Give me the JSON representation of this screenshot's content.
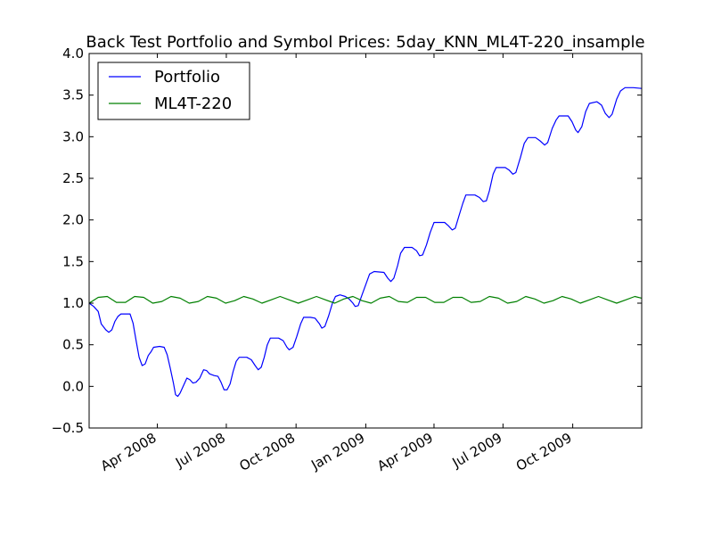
{
  "chart_data": {
    "type": "line",
    "title": "Back Test Portfolio and Symbol Prices: 5day_KNN_ML4T-220_insample",
    "xlabel": "",
    "ylabel": "",
    "xlim": [
      "2008-01-02",
      "2009-12-31"
    ],
    "ylim": [
      -0.5,
      4.0
    ],
    "y_ticks": [
      -0.5,
      0.0,
      0.5,
      1.0,
      1.5,
      2.0,
      2.5,
      3.0,
      3.5,
      4.0
    ],
    "y_tick_labels": [
      "−0.5",
      "0.0",
      "0.5",
      "1.0",
      "1.5",
      "2.0",
      "2.5",
      "3.0",
      "3.5",
      "4.0"
    ],
    "x_ticks": [
      "2008-04-01",
      "2008-07-01",
      "2008-10-01",
      "2009-01-01",
      "2009-04-01",
      "2009-07-01",
      "2009-10-01"
    ],
    "x_tick_labels": [
      "Apr 2008",
      "Jul 2008",
      "Oct 2008",
      "Jan 2009",
      "Apr 2009",
      "Jul 2009",
      "Oct 2009"
    ],
    "grid": false,
    "legend_position": "top-left",
    "series": [
      {
        "name": "Portfolio",
        "color": "#0000ff",
        "points": [
          [
            "2008-01-02",
            1.0
          ],
          [
            "2008-01-08",
            0.96
          ],
          [
            "2008-01-14",
            0.9
          ],
          [
            "2008-01-18",
            0.75
          ],
          [
            "2008-01-24",
            0.68
          ],
          [
            "2008-01-28",
            0.65
          ],
          [
            "2008-02-01",
            0.68
          ],
          [
            "2008-02-05",
            0.78
          ],
          [
            "2008-02-09",
            0.84
          ],
          [
            "2008-02-13",
            0.87
          ],
          [
            "2008-02-18",
            0.87
          ],
          [
            "2008-02-25",
            0.87
          ],
          [
            "2008-02-29",
            0.76
          ],
          [
            "2008-03-04",
            0.55
          ],
          [
            "2008-03-08",
            0.35
          ],
          [
            "2008-03-12",
            0.25
          ],
          [
            "2008-03-16",
            0.27
          ],
          [
            "2008-03-20",
            0.37
          ],
          [
            "2008-03-24",
            0.42
          ],
          [
            "2008-03-27",
            0.47
          ],
          [
            "2008-04-04",
            0.48
          ],
          [
            "2008-04-10",
            0.47
          ],
          [
            "2008-04-14",
            0.38
          ],
          [
            "2008-04-18",
            0.22
          ],
          [
            "2008-04-22",
            0.05
          ],
          [
            "2008-04-25",
            -0.1
          ],
          [
            "2008-04-28",
            -0.12
          ],
          [
            "2008-05-01",
            -0.08
          ],
          [
            "2008-05-06",
            0.02
          ],
          [
            "2008-05-10",
            0.1
          ],
          [
            "2008-05-14",
            0.08
          ],
          [
            "2008-05-18",
            0.04
          ],
          [
            "2008-05-22",
            0.05
          ],
          [
            "2008-05-27",
            0.1
          ],
          [
            "2008-06-01",
            0.2
          ],
          [
            "2008-06-05",
            0.19
          ],
          [
            "2008-06-09",
            0.15
          ],
          [
            "2008-06-15",
            0.13
          ],
          [
            "2008-06-20",
            0.12
          ],
          [
            "2008-06-24",
            0.05
          ],
          [
            "2008-06-28",
            -0.04
          ],
          [
            "2008-07-02",
            -0.04
          ],
          [
            "2008-07-06",
            0.03
          ],
          [
            "2008-07-10",
            0.18
          ],
          [
            "2008-07-14",
            0.3
          ],
          [
            "2008-07-18",
            0.35
          ],
          [
            "2008-07-28",
            0.35
          ],
          [
            "2008-08-03",
            0.32
          ],
          [
            "2008-08-08",
            0.25
          ],
          [
            "2008-08-12",
            0.2
          ],
          [
            "2008-08-16",
            0.23
          ],
          [
            "2008-08-20",
            0.35
          ],
          [
            "2008-08-24",
            0.5
          ],
          [
            "2008-08-28",
            0.58
          ],
          [
            "2008-09-08",
            0.58
          ],
          [
            "2008-09-14",
            0.55
          ],
          [
            "2008-09-19",
            0.47
          ],
          [
            "2008-09-22",
            0.44
          ],
          [
            "2008-09-27",
            0.47
          ],
          [
            "2008-10-02",
            0.6
          ],
          [
            "2008-10-07",
            0.75
          ],
          [
            "2008-10-11",
            0.83
          ],
          [
            "2008-10-20",
            0.83
          ],
          [
            "2008-10-26",
            0.82
          ],
          [
            "2008-11-01",
            0.75
          ],
          [
            "2008-11-04",
            0.7
          ],
          [
            "2008-11-08",
            0.72
          ],
          [
            "2008-11-13",
            0.85
          ],
          [
            "2008-11-18",
            1.0
          ],
          [
            "2008-11-22",
            1.08
          ],
          [
            "2008-11-28",
            1.1
          ],
          [
            "2008-12-05",
            1.08
          ],
          [
            "2008-12-10",
            1.05
          ],
          [
            "2008-12-15",
            1.0
          ],
          [
            "2008-12-18",
            0.96
          ],
          [
            "2008-12-22",
            0.97
          ],
          [
            "2008-12-27",
            1.1
          ],
          [
            "2009-01-02",
            1.25
          ],
          [
            "2009-01-06",
            1.35
          ],
          [
            "2009-01-12",
            1.38
          ],
          [
            "2009-01-25",
            1.37
          ],
          [
            "2009-01-30",
            1.3
          ],
          [
            "2009-02-03",
            1.26
          ],
          [
            "2009-02-07",
            1.3
          ],
          [
            "2009-02-12",
            1.45
          ],
          [
            "2009-02-16",
            1.6
          ],
          [
            "2009-02-21",
            1.67
          ],
          [
            "2009-03-03",
            1.67
          ],
          [
            "2009-03-09",
            1.63
          ],
          [
            "2009-03-13",
            1.57
          ],
          [
            "2009-03-17",
            1.58
          ],
          [
            "2009-03-22",
            1.7
          ],
          [
            "2009-03-27",
            1.85
          ],
          [
            "2009-04-01",
            1.97
          ],
          [
            "2009-04-15",
            1.97
          ],
          [
            "2009-04-20",
            1.93
          ],
          [
            "2009-04-25",
            1.88
          ],
          [
            "2009-04-29",
            1.9
          ],
          [
            "2009-05-04",
            2.05
          ],
          [
            "2009-05-09",
            2.2
          ],
          [
            "2009-05-13",
            2.3
          ],
          [
            "2009-05-25",
            2.3
          ],
          [
            "2009-05-31",
            2.27
          ],
          [
            "2009-06-05",
            2.22
          ],
          [
            "2009-06-09",
            2.23
          ],
          [
            "2009-06-13",
            2.35
          ],
          [
            "2009-06-18",
            2.55
          ],
          [
            "2009-06-22",
            2.63
          ],
          [
            "2009-07-04",
            2.63
          ],
          [
            "2009-07-09",
            2.6
          ],
          [
            "2009-07-14",
            2.55
          ],
          [
            "2009-07-18",
            2.57
          ],
          [
            "2009-07-24",
            2.75
          ],
          [
            "2009-07-29",
            2.92
          ],
          [
            "2009-08-03",
            2.99
          ],
          [
            "2009-08-13",
            2.99
          ],
          [
            "2009-08-19",
            2.95
          ],
          [
            "2009-08-25",
            2.9
          ],
          [
            "2009-08-29",
            2.93
          ],
          [
            "2009-09-04",
            3.1
          ],
          [
            "2009-09-09",
            3.2
          ],
          [
            "2009-09-13",
            3.25
          ],
          [
            "2009-09-25",
            3.25
          ],
          [
            "2009-09-30",
            3.18
          ],
          [
            "2009-10-05",
            3.08
          ],
          [
            "2009-10-08",
            3.05
          ],
          [
            "2009-10-13",
            3.12
          ],
          [
            "2009-10-18",
            3.3
          ],
          [
            "2009-10-23",
            3.4
          ],
          [
            "2009-11-02",
            3.42
          ],
          [
            "2009-11-08",
            3.38
          ],
          [
            "2009-11-13",
            3.28
          ],
          [
            "2009-11-18",
            3.23
          ],
          [
            "2009-11-22",
            3.27
          ],
          [
            "2009-11-28",
            3.45
          ],
          [
            "2009-12-03",
            3.55
          ],
          [
            "2009-12-09",
            3.59
          ],
          [
            "2009-12-20",
            3.59
          ],
          [
            "2009-12-31",
            3.58
          ]
        ]
      },
      {
        "name": "ML4T-220",
        "color": "#008000",
        "baseline": 1.0,
        "amplitude": 0.085,
        "period_days": 48,
        "points": [
          [
            "2008-01-02",
            1.0
          ],
          [
            "2008-01-14",
            1.07
          ],
          [
            "2008-01-26",
            1.08
          ],
          [
            "2008-02-07",
            1.01
          ],
          [
            "2008-02-19",
            1.01
          ],
          [
            "2008-03-02",
            1.08
          ],
          [
            "2008-03-14",
            1.07
          ],
          [
            "2008-03-26",
            1.0
          ],
          [
            "2008-04-07",
            1.02
          ],
          [
            "2008-04-19",
            1.08
          ],
          [
            "2008-05-01",
            1.06
          ],
          [
            "2008-05-13",
            1.0
          ],
          [
            "2008-05-25",
            1.02
          ],
          [
            "2008-06-06",
            1.08
          ],
          [
            "2008-06-18",
            1.06
          ],
          [
            "2008-06-30",
            1.0
          ],
          [
            "2008-07-12",
            1.03
          ],
          [
            "2008-07-24",
            1.08
          ],
          [
            "2008-08-05",
            1.05
          ],
          [
            "2008-08-17",
            1.0
          ],
          [
            "2008-08-29",
            1.04
          ],
          [
            "2008-09-10",
            1.08
          ],
          [
            "2008-09-22",
            1.04
          ],
          [
            "2008-10-04",
            1.0
          ],
          [
            "2008-10-16",
            1.04
          ],
          [
            "2008-10-28",
            1.08
          ],
          [
            "2008-11-09",
            1.04
          ],
          [
            "2008-11-21",
            1.0
          ],
          [
            "2008-12-03",
            1.05
          ],
          [
            "2008-12-15",
            1.08
          ],
          [
            "2008-12-27",
            1.03
          ],
          [
            "2009-01-08",
            1.0
          ],
          [
            "2009-01-20",
            1.06
          ],
          [
            "2009-02-01",
            1.08
          ],
          [
            "2009-02-13",
            1.02
          ],
          [
            "2009-02-25",
            1.01
          ],
          [
            "2009-03-09",
            1.07
          ],
          [
            "2009-03-21",
            1.07
          ],
          [
            "2009-04-02",
            1.01
          ],
          [
            "2009-04-14",
            1.01
          ],
          [
            "2009-04-26",
            1.07
          ],
          [
            "2009-05-08",
            1.07
          ],
          [
            "2009-05-20",
            1.01
          ],
          [
            "2009-06-01",
            1.02
          ],
          [
            "2009-06-13",
            1.08
          ],
          [
            "2009-06-25",
            1.06
          ],
          [
            "2009-07-07",
            1.0
          ],
          [
            "2009-07-19",
            1.02
          ],
          [
            "2009-07-31",
            1.08
          ],
          [
            "2009-08-12",
            1.05
          ],
          [
            "2009-08-24",
            1.0
          ],
          [
            "2009-09-05",
            1.03
          ],
          [
            "2009-09-17",
            1.08
          ],
          [
            "2009-09-29",
            1.05
          ],
          [
            "2009-10-11",
            1.0
          ],
          [
            "2009-10-23",
            1.04
          ],
          [
            "2009-11-04",
            1.08
          ],
          [
            "2009-11-16",
            1.04
          ],
          [
            "2009-11-28",
            1.0
          ],
          [
            "2009-12-10",
            1.04
          ],
          [
            "2009-12-22",
            1.08
          ],
          [
            "2009-12-31",
            1.06
          ]
        ]
      }
    ]
  }
}
